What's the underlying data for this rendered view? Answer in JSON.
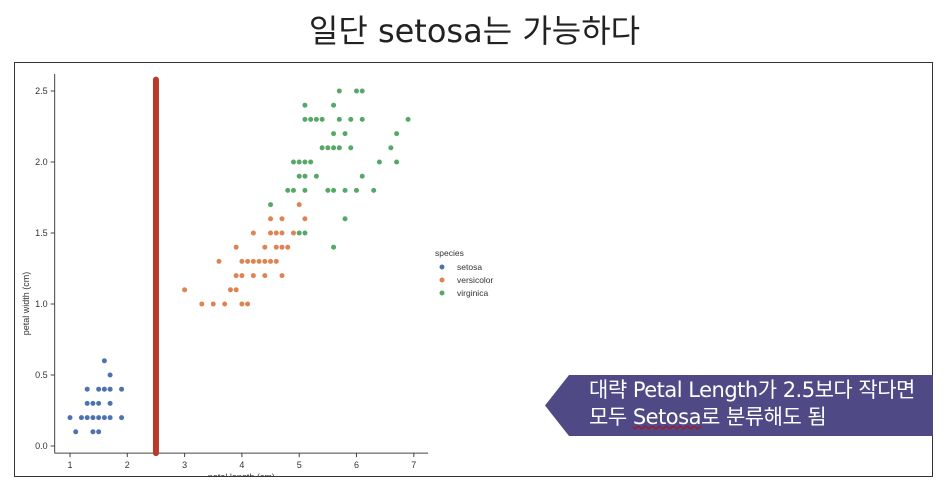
{
  "slide": {
    "title": "일단 setosa는 가능하다",
    "callout": {
      "line1": "대략 Petal Length가 2.5보다 작다면",
      "line2_pre": "모두 ",
      "line2_word": "Setosa",
      "line2_post": "로 분류해도 됨",
      "color": "#4f4a86"
    }
  },
  "chart_data": {
    "type": "scatter",
    "xlabel": "petal length (cm)",
    "ylabel": "petal width (cm)",
    "xlim": [
      0.75,
      7.25
    ],
    "ylim": [
      -0.05,
      2.62
    ],
    "xticks": [
      1,
      2,
      3,
      4,
      5,
      6,
      7
    ],
    "yticks": [
      "0.0",
      "0.5",
      "1.0",
      "1.5",
      "2.0",
      "2.5"
    ],
    "grid": false,
    "legend": {
      "title": "species",
      "placement": "right"
    },
    "vline": {
      "x": 2.5,
      "color": "#b83a2a"
    },
    "series": [
      {
        "name": "setosa",
        "color": "#4c72b0",
        "points": [
          [
            1.6,
            0.6
          ],
          [
            1.7,
            0.5
          ],
          [
            1.3,
            0.4
          ],
          [
            1.5,
            0.4
          ],
          [
            1.6,
            0.4
          ],
          [
            1.7,
            0.4
          ],
          [
            1.9,
            0.4
          ],
          [
            1.3,
            0.3
          ],
          [
            1.4,
            0.3
          ],
          [
            1.5,
            0.3
          ],
          [
            1.7,
            0.3
          ],
          [
            1.0,
            0.2
          ],
          [
            1.2,
            0.2
          ],
          [
            1.3,
            0.2
          ],
          [
            1.4,
            0.2
          ],
          [
            1.5,
            0.2
          ],
          [
            1.6,
            0.2
          ],
          [
            1.7,
            0.2
          ],
          [
            1.9,
            0.2
          ],
          [
            1.1,
            0.1
          ],
          [
            1.4,
            0.1
          ],
          [
            1.5,
            0.1
          ]
        ]
      },
      {
        "name": "versicolor",
        "color": "#dd8452",
        "points": [
          [
            5.0,
            1.7
          ],
          [
            4.5,
            1.6
          ],
          [
            4.7,
            1.6
          ],
          [
            5.1,
            1.6
          ],
          [
            4.2,
            1.5
          ],
          [
            4.5,
            1.5
          ],
          [
            4.6,
            1.5
          ],
          [
            4.7,
            1.5
          ],
          [
            4.9,
            1.5
          ],
          [
            3.9,
            1.4
          ],
          [
            4.4,
            1.4
          ],
          [
            4.6,
            1.4
          ],
          [
            4.7,
            1.4
          ],
          [
            4.8,
            1.4
          ],
          [
            3.6,
            1.3
          ],
          [
            4.0,
            1.3
          ],
          [
            4.1,
            1.3
          ],
          [
            4.2,
            1.3
          ],
          [
            4.3,
            1.3
          ],
          [
            4.4,
            1.3
          ],
          [
            4.5,
            1.3
          ],
          [
            4.6,
            1.3
          ],
          [
            3.9,
            1.2
          ],
          [
            4.0,
            1.2
          ],
          [
            4.2,
            1.2
          ],
          [
            4.4,
            1.2
          ],
          [
            4.7,
            1.2
          ],
          [
            3.0,
            1.1
          ],
          [
            3.8,
            1.1
          ],
          [
            3.9,
            1.1
          ],
          [
            3.3,
            1.0
          ],
          [
            3.5,
            1.0
          ],
          [
            3.7,
            1.0
          ],
          [
            4.0,
            1.0
          ],
          [
            4.1,
            1.0
          ]
        ]
      },
      {
        "name": "virginica",
        "color": "#55a868",
        "points": [
          [
            5.7,
            2.5
          ],
          [
            6.0,
            2.5
          ],
          [
            6.1,
            2.5
          ],
          [
            5.1,
            2.4
          ],
          [
            5.6,
            2.4
          ],
          [
            5.1,
            2.3
          ],
          [
            5.2,
            2.3
          ],
          [
            5.3,
            2.3
          ],
          [
            5.4,
            2.3
          ],
          [
            5.7,
            2.3
          ],
          [
            5.9,
            2.3
          ],
          [
            6.1,
            2.3
          ],
          [
            6.9,
            2.3
          ],
          [
            5.6,
            2.2
          ],
          [
            5.8,
            2.2
          ],
          [
            6.7,
            2.2
          ],
          [
            5.4,
            2.1
          ],
          [
            5.5,
            2.1
          ],
          [
            5.6,
            2.1
          ],
          [
            5.7,
            2.1
          ],
          [
            5.9,
            2.1
          ],
          [
            6.6,
            2.1
          ],
          [
            4.9,
            2.0
          ],
          [
            5.0,
            2.0
          ],
          [
            5.1,
            2.0
          ],
          [
            5.2,
            2.0
          ],
          [
            6.4,
            2.0
          ],
          [
            6.7,
            2.0
          ],
          [
            5.0,
            1.9
          ],
          [
            5.1,
            1.9
          ],
          [
            5.3,
            1.9
          ],
          [
            6.1,
            1.9
          ],
          [
            4.8,
            1.8
          ],
          [
            4.9,
            1.8
          ],
          [
            5.1,
            1.8
          ],
          [
            5.5,
            1.8
          ],
          [
            5.6,
            1.8
          ],
          [
            5.8,
            1.8
          ],
          [
            6.0,
            1.8
          ],
          [
            6.3,
            1.8
          ],
          [
            4.5,
            1.7
          ],
          [
            5.8,
            1.6
          ],
          [
            5.0,
            1.5
          ],
          [
            5.1,
            1.5
          ],
          [
            5.6,
            1.4
          ]
        ]
      }
    ]
  }
}
